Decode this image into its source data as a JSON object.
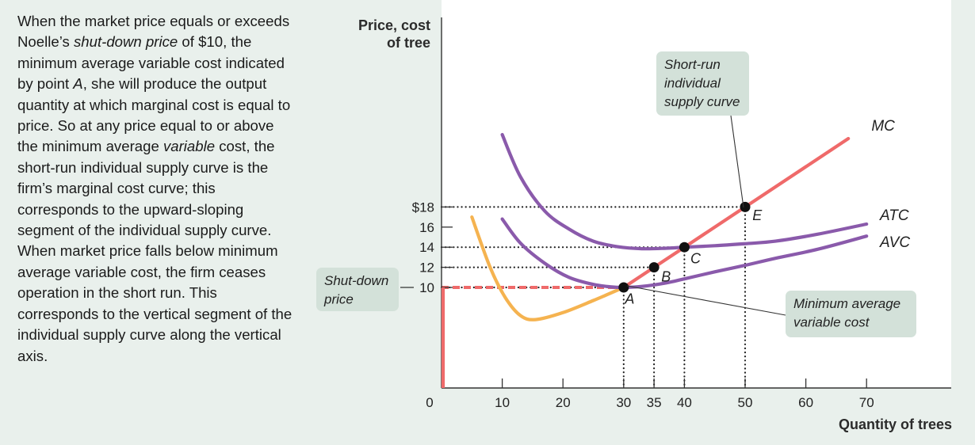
{
  "caption": {
    "t1": "When the market price equals or exceeds Noelle’s ",
    "t2": "shut-down price",
    "t3": " of $10, the minimum average variable cost indicated by point ",
    "t4": "A",
    "t5": ", she will produce the output quantity at which marginal cost is equal to price. So at any price equal to or above the minimum average ",
    "t6": "variable",
    "t7": " cost, the short-run individual supply curve is the firm’s marginal cost curve; this corresponds to the upward-sloping segment of the individual supply curve. When market price falls below minimum average variable cost, the firm ceases operation in the short run. This corresponds to the vertical segment of the individual supply curve along the vertical axis."
  },
  "colors": {
    "background": "#e9f0ec",
    "plot_background": "#ffffff",
    "mc": "#ef6a6a",
    "atc_avc": "#8a5aab",
    "mc_lower": "#f5b350",
    "supply_dashed": "#ef6a6a",
    "label_box": "#d3e1d9",
    "point": "#111111"
  },
  "chart_data": {
    "type": "line",
    "ylabel_lines": [
      "Price, cost",
      "of tree"
    ],
    "xlabel": "Quantity of trees",
    "xlim": [
      0,
      85
    ],
    "ylim": [
      0,
      28
    ],
    "x_ticks": [
      {
        "v": 0,
        "label": "0"
      },
      {
        "v": 10,
        "label": "10"
      },
      {
        "v": 20,
        "label": "20"
      },
      {
        "v": 30,
        "label": "30"
      },
      {
        "v": 35,
        "label": "35"
      },
      {
        "v": 40,
        "label": "40"
      },
      {
        "v": 50,
        "label": "50"
      },
      {
        "v": 60,
        "label": "60"
      },
      {
        "v": 70,
        "label": "70"
      }
    ],
    "y_ticks": [
      {
        "v": 10,
        "label": "10"
      },
      {
        "v": 12,
        "label": "12"
      },
      {
        "v": 14,
        "label": "14"
      },
      {
        "v": 16,
        "label": "16"
      },
      {
        "v": 18,
        "label": "$18"
      }
    ],
    "series": [
      {
        "name": "MC",
        "key": "mc_upper",
        "points": [
          [
            30,
            10
          ],
          [
            35,
            12
          ],
          [
            40,
            14
          ],
          [
            50,
            18
          ],
          [
            67,
            24.8
          ]
        ]
      },
      {
        "name": "MC",
        "key": "mc_lower",
        "points": [
          [
            5,
            17
          ],
          [
            8,
            12
          ],
          [
            10.5,
            9
          ],
          [
            13,
            7.2
          ],
          [
            15.5,
            6.8
          ],
          [
            20,
            7.5
          ],
          [
            25,
            8.7
          ],
          [
            30,
            10
          ]
        ]
      },
      {
        "name": "ATC",
        "key": "atc",
        "points": [
          [
            10,
            25.2
          ],
          [
            13,
            21
          ],
          [
            17,
            17.6
          ],
          [
            21,
            15.8
          ],
          [
            25,
            14.6
          ],
          [
            29,
            14.05
          ],
          [
            33,
            13.85
          ],
          [
            37,
            13.9
          ],
          [
            40,
            14
          ],
          [
            45,
            14.15
          ],
          [
            50,
            14.35
          ],
          [
            55,
            14.6
          ],
          [
            62,
            15.3
          ],
          [
            70,
            16.3
          ]
        ]
      },
      {
        "name": "AVC",
        "key": "avc",
        "points": [
          [
            10,
            16.8
          ],
          [
            13,
            14.4
          ],
          [
            17,
            12.4
          ],
          [
            21,
            11
          ],
          [
            25,
            10.3
          ],
          [
            28,
            10.05
          ],
          [
            30,
            10
          ],
          [
            33,
            10.1
          ],
          [
            37,
            10.45
          ],
          [
            40,
            10.85
          ],
          [
            45,
            11.55
          ],
          [
            50,
            12.2
          ],
          [
            55,
            12.9
          ],
          [
            62,
            13.8
          ],
          [
            70,
            15.1
          ]
        ]
      }
    ],
    "curve_labels": [
      {
        "text": "MC",
        "x": 70.8,
        "y": 25.6
      },
      {
        "text": "ATC",
        "x": 72.2,
        "y": 16.7
      },
      {
        "text": "AVC",
        "x": 72.2,
        "y": 14.0
      }
    ],
    "points": [
      {
        "label": "A",
        "x": 30,
        "y": 10,
        "lx": 30.2,
        "ly": 8.4
      },
      {
        "label": "B",
        "x": 35,
        "y": 12,
        "lx": 36.2,
        "ly": 10.6
      },
      {
        "label": "C",
        "x": 40,
        "y": 14,
        "lx": 41.0,
        "ly": 12.4
      },
      {
        "label": "E",
        "x": 50,
        "y": 18,
        "lx": 51.2,
        "ly": 16.7
      }
    ],
    "guides": [
      {
        "x": 30,
        "y": 10
      },
      {
        "x": 35,
        "y": 12
      },
      {
        "x": 40,
        "y": 14
      },
      {
        "x": 50,
        "y": 18
      }
    ],
    "supply_curve_vertical": {
      "x": 0,
      "y_from": 0,
      "y_to": 10
    },
    "shutdown_price": 10,
    "annotations": [
      {
        "key": "supply",
        "lines": [
          "Short-run",
          "individual",
          "supply curve"
        ]
      },
      {
        "key": "shutdown",
        "lines": [
          "Shut-down",
          "price"
        ]
      },
      {
        "key": "minavc",
        "lines": [
          "Minimum average",
          "variable cost"
        ]
      }
    ]
  }
}
